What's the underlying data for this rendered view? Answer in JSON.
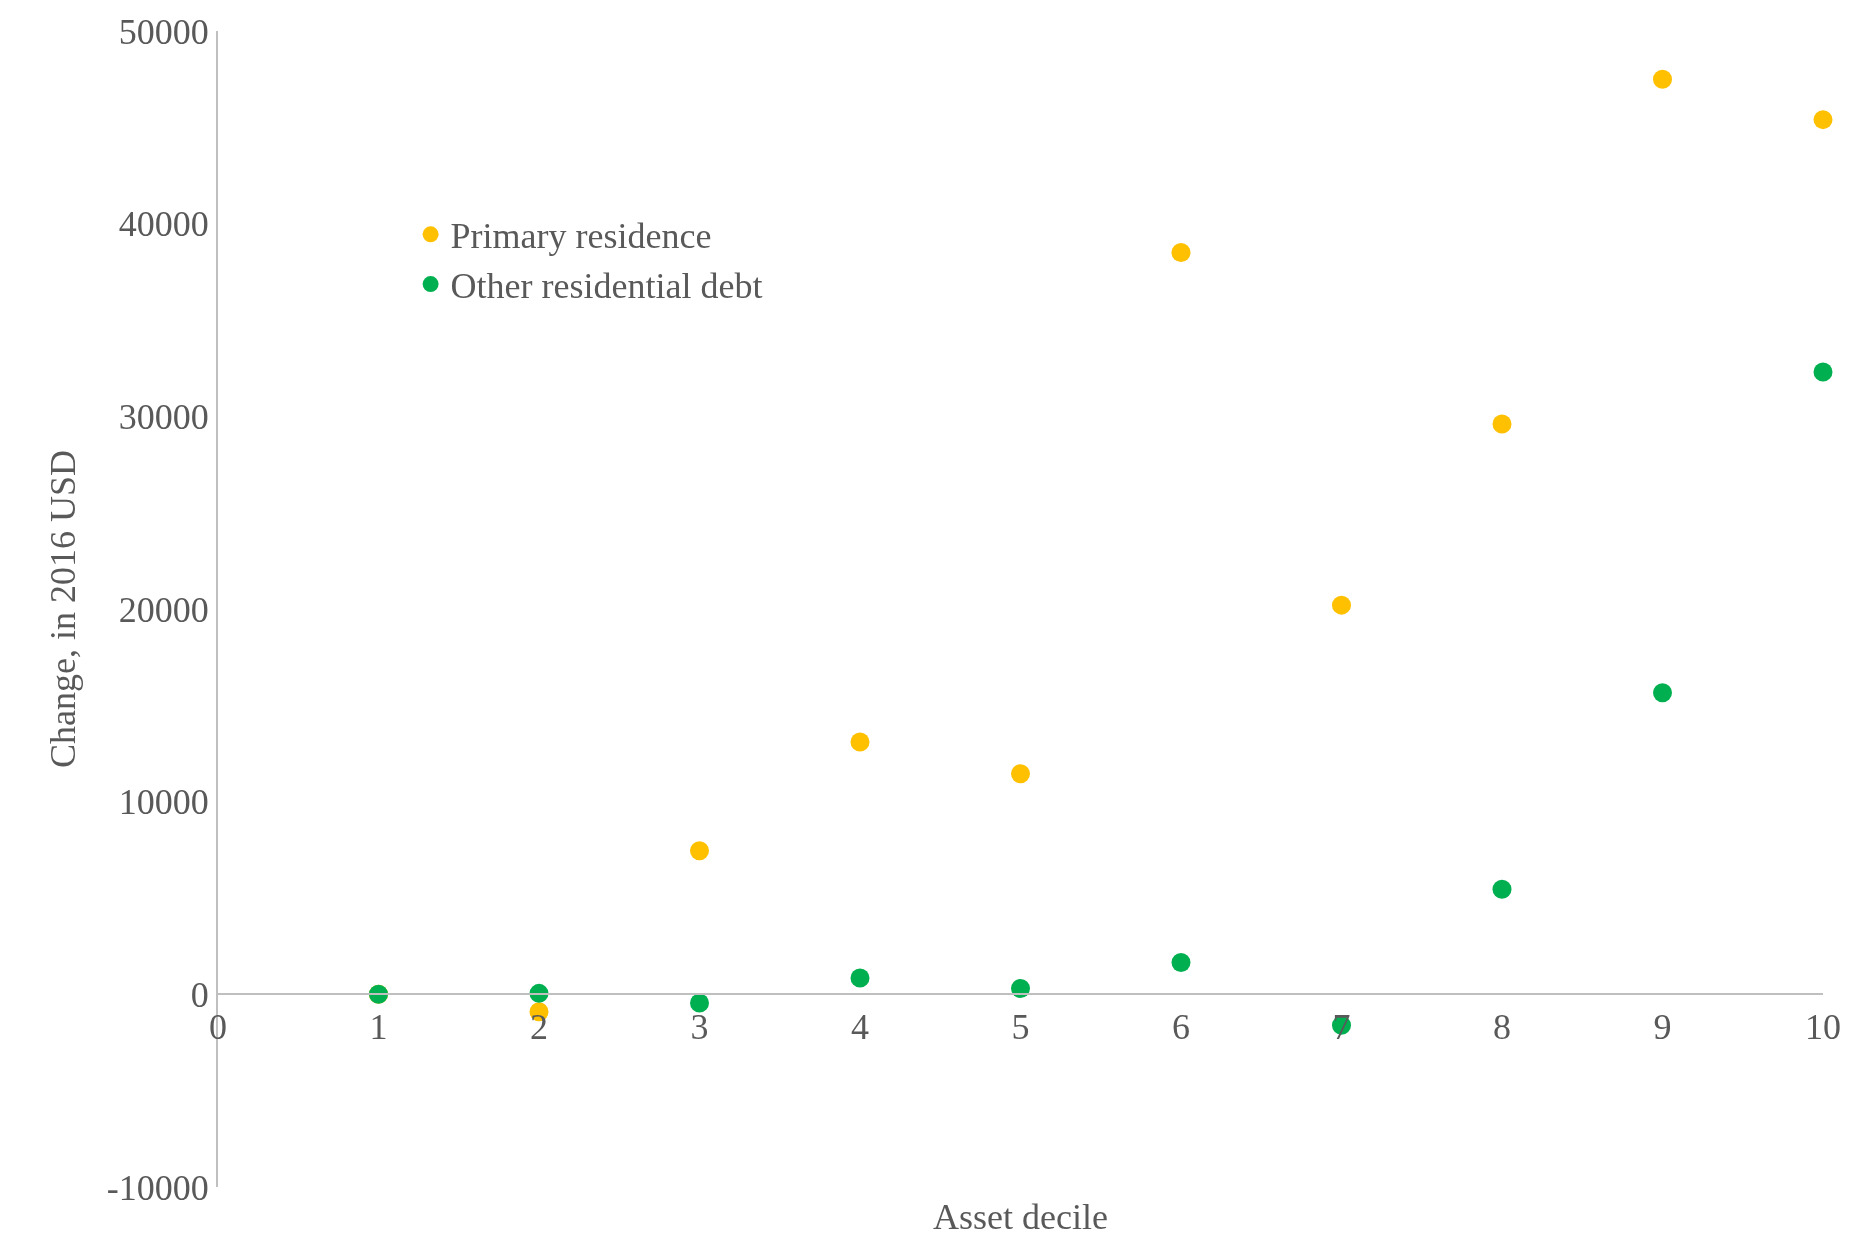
{
  "chart_data": {
    "type": "scatter",
    "xlabel": "Asset decile",
    "ylabel": "Change, in 2016 USD",
    "x": [
      1,
      2,
      3,
      4,
      5,
      6,
      7,
      8,
      9,
      10
    ],
    "series": [
      {
        "name": "Primary residence",
        "color": "#ffc000",
        "values": [
          0,
          -900,
          7450,
          13100,
          11450,
          38500,
          20200,
          29600,
          47500,
          45400
        ]
      },
      {
        "name": "Other residential debt",
        "color": "#00b050",
        "values": [
          0,
          50,
          -450,
          850,
          300,
          1650,
          -1600,
          5450,
          15650,
          32300
        ]
      }
    ],
    "xlim": [
      0,
      10
    ],
    "xticks": [
      0,
      1,
      2,
      3,
      4,
      5,
      6,
      7,
      8,
      9,
      10
    ],
    "ylim": [
      -10000,
      50000
    ],
    "yticks": [
      -10000,
      0,
      10000,
      20000,
      30000,
      40000,
      50000
    ],
    "legend": "top left",
    "marker": "circle"
  }
}
